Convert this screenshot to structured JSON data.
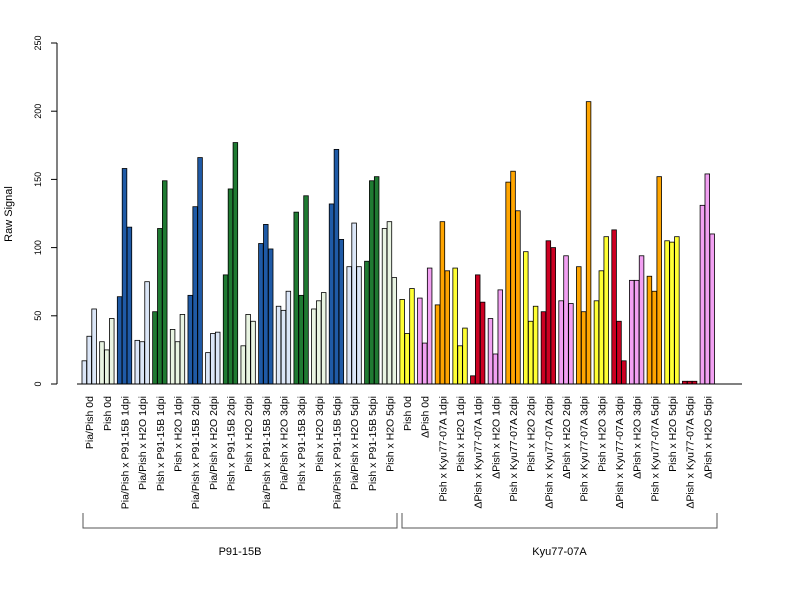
{
  "chart_data": {
    "type": "bar",
    "title": "",
    "ylabel": "Raw Signal",
    "ylim": [
      0,
      250
    ],
    "yticks": [
      0,
      50,
      100,
      150,
      200,
      250
    ],
    "grid": false,
    "legend": "none",
    "bars_per_group": 3,
    "groups": [
      {
        "label": "Pia/Pish 0d",
        "color": "#dbe6f7",
        "values": [
          17,
          35,
          55
        ]
      },
      {
        "label": "Pish 0d",
        "color": "#e9f4e2",
        "values": [
          31,
          25,
          48
        ]
      },
      {
        "label": "Pia/Pish x P91-15B 1dpi",
        "color": "#1f5aa6",
        "values": [
          64,
          158,
          115
        ]
      },
      {
        "label": "Pia/Pish x H2O 1dpi",
        "color": "#dbe6f7",
        "values": [
          32,
          31,
          75
        ]
      },
      {
        "label": "Pish x P91-15B 1dpi",
        "color": "#1f7a32",
        "values": [
          53,
          114,
          149
        ]
      },
      {
        "label": "Pish x H2O 1dpi",
        "color": "#e9f4e2",
        "values": [
          40,
          31,
          51
        ]
      },
      {
        "label": "Pia/Pish x P91-15B 2dpi",
        "color": "#1f5aa6",
        "values": [
          65,
          130,
          166
        ]
      },
      {
        "label": "Pia/Pish x H2O 2dpi",
        "color": "#dbe6f7",
        "values": [
          23,
          37,
          38
        ]
      },
      {
        "label": "Pish x P91-15B 2dpi",
        "color": "#1f7a32",
        "values": [
          80,
          143,
          177
        ]
      },
      {
        "label": "Pish x H2O 2dpi",
        "color": "#e9f4e2",
        "values": [
          28,
          51,
          46
        ]
      },
      {
        "label": "Pia/Pish x P91-15B 3dpi",
        "color": "#1f5aa6",
        "values": [
          103,
          117,
          99
        ]
      },
      {
        "label": "Pia/Pish x H2O 3dpi",
        "color": "#dbe6f7",
        "values": [
          57,
          54,
          68
        ]
      },
      {
        "label": "Pish x P91-15B 3dpi",
        "color": "#1f7a32",
        "values": [
          126,
          65,
          138
        ]
      },
      {
        "label": "Pish x H2O 3dpi",
        "color": "#e9f4e2",
        "values": [
          55,
          61,
          67
        ]
      },
      {
        "label": "Pia/Pish x P91-15B 5dpi",
        "color": "#1f5aa6",
        "values": [
          132,
          172,
          106
        ]
      },
      {
        "label": "Pia/Pish x H2O 5dpi",
        "color": "#dbe6f7",
        "values": [
          86,
          118,
          86
        ]
      },
      {
        "label": "Pish x P91-15B 5dpi",
        "color": "#1f7a32",
        "values": [
          90,
          149,
          152
        ]
      },
      {
        "label": "Pish x H2O 5dpi",
        "color": "#e9f4e2",
        "values": [
          114,
          119,
          78
        ]
      },
      {
        "label": "Pish 0d",
        "color": "#ffff33",
        "values": [
          62,
          37,
          70
        ]
      },
      {
        "label": "ΔPish 0d",
        "color": "#f2a0f2",
        "values": [
          63,
          30,
          85
        ]
      },
      {
        "label": "Pish x Kyu77-07A 1dpi",
        "color": "#ffa500",
        "values": [
          58,
          119,
          83
        ]
      },
      {
        "label": "Pish x H2O 1dpi",
        "color": "#ffff33",
        "values": [
          85,
          28,
          41
        ]
      },
      {
        "label": "ΔPish x Kyu77-07A 1dpi",
        "color": "#cc0022",
        "values": [
          6,
          80,
          60
        ]
      },
      {
        "label": "ΔPish x H2O 1dpi",
        "color": "#f2a0f2",
        "values": [
          48,
          22,
          69
        ]
      },
      {
        "label": "Pish x Kyu77-07A 2dpi",
        "color": "#ffa500",
        "values": [
          148,
          156,
          127
        ]
      },
      {
        "label": "Pish x H2O 2dpi",
        "color": "#ffff33",
        "values": [
          97,
          46,
          57
        ]
      },
      {
        "label": "ΔPish x Kyu77-07A 2dpi",
        "color": "#cc0022",
        "values": [
          53,
          105,
          100
        ]
      },
      {
        "label": "ΔPish x H2O 2dpi",
        "color": "#f2a0f2",
        "values": [
          61,
          94,
          59
        ]
      },
      {
        "label": "Pish x Kyu77-07A 3dpi",
        "color": "#ffa500",
        "values": [
          86,
          53,
          207
        ]
      },
      {
        "label": "Pish x H2O 3dpi",
        "color": "#ffff33",
        "values": [
          61,
          83,
          108
        ]
      },
      {
        "label": "ΔPish x Kyu77-07A 3dpi",
        "color": "#cc0022",
        "values": [
          113,
          46,
          17
        ]
      },
      {
        "label": "ΔPish x H2O 3dpi",
        "color": "#f2a0f2",
        "values": [
          76,
          76,
          94
        ]
      },
      {
        "label": "Pish x Kyu77-07A 5dpi",
        "color": "#ffa500",
        "values": [
          79,
          68,
          152
        ]
      },
      {
        "label": "Pish x H2O 5dpi",
        "color": "#ffff33",
        "values": [
          105,
          104,
          108
        ]
      },
      {
        "label": "ΔPish x Kyu77-07A 5dpi",
        "color": "#cc0022",
        "values": [
          2,
          2,
          2
        ]
      },
      {
        "label": "ΔPish x H2O 5dpi",
        "color": "#f2a0f2",
        "values": [
          131,
          154,
          110
        ]
      }
    ],
    "group_brackets": [
      {
        "label": "P91-15B",
        "first": 0,
        "last": 17
      },
      {
        "label": "Kyu77-07A",
        "first": 18,
        "last": 35
      }
    ]
  }
}
